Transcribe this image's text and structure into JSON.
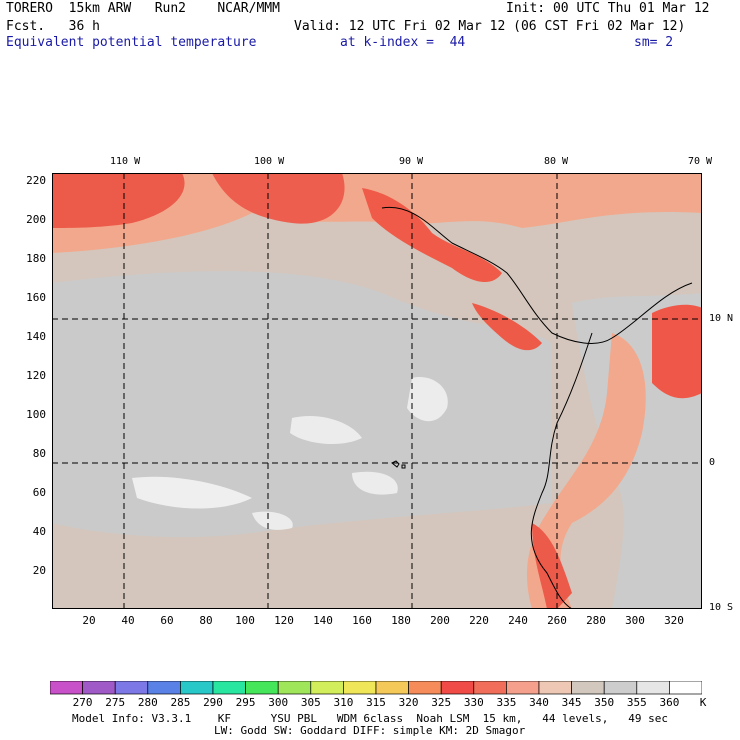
{
  "header": {
    "left_line1": "TORERO  15km ARW   Run2    NCAR/MMM",
    "left_line2": "Fcst.   36 h",
    "right_line1": "Init: 00 UTC Thu 01 Mar 12",
    "right_line2": "Valid: 12 UTC Fri 02 Mar 12 (06 CST Fri 02 Mar 12)",
    "field_name": "Equivalent potential temperature",
    "level": "at k-index =  44",
    "smoothing": "sm= 2"
  },
  "map": {
    "lon_labels": [
      "110 W",
      "100 W",
      "90 W",
      "80 W",
      "70 W"
    ],
    "lat_labels_right": [
      "10 N",
      "0",
      "10 S"
    ],
    "y_ticks": [
      "220",
      "200",
      "180",
      "160",
      "140",
      "120",
      "100",
      "80",
      "60",
      "40",
      "20"
    ],
    "x_ticks": [
      "20",
      "40",
      "60",
      "80",
      "100",
      "120",
      "140",
      "160",
      "180",
      "200",
      "220",
      "240",
      "260",
      "280",
      "300",
      "320"
    ]
  },
  "colorbar": {
    "levels": [
      "270",
      "275",
      "280",
      "285",
      "290",
      "295",
      "300",
      "305",
      "310",
      "315",
      "320",
      "325",
      "330",
      "335",
      "340",
      "345",
      "350",
      "355",
      "360"
    ],
    "unit": "K",
    "colors": [
      "#c850c8",
      "#a05ac8",
      "#7c78e6",
      "#5a82e6",
      "#28c8c8",
      "#28e6a0",
      "#46e65a",
      "#a0e65a",
      "#d2ee5a",
      "#f0e65a",
      "#f5c85a",
      "#f58c5a",
      "#f04b46",
      "#f06e5a",
      "#f5a08c",
      "#eec8b4",
      "#d2c8be",
      "#cdcdcd",
      "#e6e6e6",
      "#ffffff"
    ]
  },
  "footer": {
    "line1": "Model Info: V3.3.1    KF      YSU PBL   WDM 6class  Noah LSM  15 km,   44 levels,   49 sec",
    "line2": "LW: Godd SW: Goddard DIFF: simple KM: 2D Smagor"
  }
}
